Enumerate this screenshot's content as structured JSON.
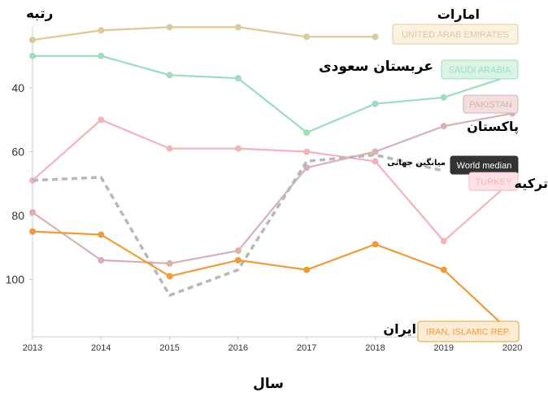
{
  "chart_data": {
    "type": "line",
    "ylabel": "رتبه",
    "xlabel": "سال",
    "x": [
      2013,
      2014,
      2015,
      2016,
      2017,
      2018,
      2019,
      2020
    ],
    "ylim": [
      118,
      21
    ],
    "yticks": [
      40,
      60,
      80,
      100
    ],
    "series": [
      {
        "name": "UNITED ARAB EMIRATES",
        "label_fa": "امارات",
        "color": "#ddc89a",
        "tag_fill": "#fbf3e0",
        "values": [
          25,
          22,
          21,
          21,
          24,
          24,
          null,
          null
        ]
      },
      {
        "name": "SAUDI ARABIA",
        "label_fa": "عربستان سعودی",
        "color": "#9fdcbc",
        "tag_fill": "#d9f4e4",
        "values": [
          30,
          30,
          36,
          37,
          54,
          45,
          43,
          36
        ]
      },
      {
        "name": "PAKISTAN",
        "label_fa": "پاکستان",
        "color": "#d7b1b1",
        "tag_fill": "#f3dede",
        "values": [
          79,
          94,
          95,
          91,
          65,
          60,
          52,
          48
        ]
      },
      {
        "name": "TURKEY",
        "label_fa": "ترکیه",
        "color": "#f2b3b9",
        "tag_fill": "#fde3e6",
        "values": [
          69,
          50,
          59,
          59,
          60,
          63,
          88,
          69
        ]
      },
      {
        "name": "World median",
        "label_fa": "میانگین جهانی",
        "color": "#b8b8b8",
        "dashed": true,
        "values": [
          69,
          68,
          105,
          97,
          63,
          61,
          66,
          null
        ]
      },
      {
        "name": "IRAN, ISLAMIC REP.",
        "label_fa": "ایران",
        "color": "#ee9b3c",
        "tag_fill": "#fdebd6",
        "values": [
          85,
          86,
          99,
          94,
          97,
          89,
          97,
          117
        ]
      }
    ]
  }
}
